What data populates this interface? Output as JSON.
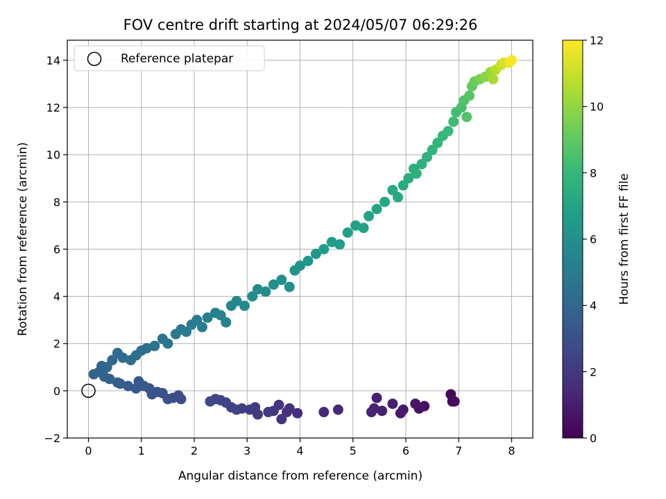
{
  "chart_data": {
    "type": "scatter",
    "title": "FOV centre drift starting at 2024/05/07 06:29:26",
    "xlabel": "Angular distance from reference (arcmin)",
    "ylabel": "Rotation from reference (arcmin)",
    "xlim": [
      -0.4,
      8.4
    ],
    "ylim": [
      -2.0,
      14.85
    ],
    "xticks": [
      0,
      1,
      2,
      3,
      4,
      5,
      6,
      7,
      8
    ],
    "yticks": [
      -2,
      0,
      2,
      4,
      6,
      8,
      10,
      12,
      14
    ],
    "grid": true,
    "legend": {
      "placement": "top-left",
      "entries": [
        "Reference platepar"
      ]
    },
    "reference_point": {
      "x": 0,
      "y": 0
    },
    "colorbar": {
      "label": "Hours from first FF file",
      "min": 0,
      "max": 12,
      "ticks": [
        0,
        2,
        4,
        6,
        8,
        10,
        12
      ],
      "colormap": "viridis"
    },
    "points": [
      [
        6.85,
        -0.15,
        0.2
      ],
      [
        6.88,
        -0.45,
        0.25
      ],
      [
        6.92,
        -0.45,
        0.3
      ],
      [
        6.35,
        -0.65,
        0.5
      ],
      [
        6.25,
        -0.75,
        0.6
      ],
      [
        6.18,
        -0.55,
        0.7
      ],
      [
        5.95,
        -0.8,
        0.8
      ],
      [
        5.9,
        -0.95,
        0.9
      ],
      [
        5.75,
        -0.55,
        1.0
      ],
      [
        5.55,
        -0.85,
        1.05
      ],
      [
        5.45,
        -0.3,
        1.1
      ],
      [
        5.4,
        -0.75,
        1.15
      ],
      [
        5.35,
        -0.9,
        1.2
      ],
      [
        4.72,
        -0.8,
        1.35
      ],
      [
        4.45,
        -0.9,
        1.45
      ],
      [
        3.95,
        -0.95,
        1.6
      ],
      [
        3.8,
        -0.75,
        1.7
      ],
      [
        3.75,
        -0.9,
        1.75
      ],
      [
        3.65,
        -1.2,
        1.8
      ],
      [
        3.6,
        -0.6,
        1.85
      ],
      [
        3.5,
        -0.85,
        1.9
      ],
      [
        3.4,
        -0.9,
        2.0
      ],
      [
        3.2,
        -1.0,
        2.1
      ],
      [
        3.15,
        -0.7,
        2.15
      ],
      [
        3.05,
        -0.8,
        2.2
      ],
      [
        2.9,
        -0.75,
        2.3
      ],
      [
        2.8,
        -0.8,
        2.35
      ],
      [
        2.7,
        -0.7,
        2.4
      ],
      [
        2.6,
        -0.5,
        2.5
      ],
      [
        2.5,
        -0.4,
        2.55
      ],
      [
        2.4,
        -0.35,
        2.6
      ],
      [
        2.3,
        -0.45,
        2.65
      ],
      [
        1.75,
        -0.35,
        2.8
      ],
      [
        1.7,
        -0.2,
        2.85
      ],
      [
        1.6,
        -0.3,
        2.9
      ],
      [
        1.5,
        -0.35,
        3.0
      ],
      [
        1.4,
        -0.1,
        3.05
      ],
      [
        1.3,
        -0.05,
        3.1
      ],
      [
        1.2,
        -0.15,
        3.15
      ],
      [
        1.15,
        0.1,
        3.2
      ],
      [
        1.05,
        0.2,
        3.25
      ],
      [
        0.95,
        0.4,
        3.3
      ],
      [
        0.9,
        0.1,
        3.35
      ],
      [
        0.75,
        0.2,
        3.4
      ],
      [
        0.6,
        0.3,
        3.5
      ],
      [
        0.55,
        0.35,
        3.55
      ],
      [
        0.4,
        0.5,
        3.6
      ],
      [
        0.3,
        0.6,
        3.7
      ],
      [
        0.2,
        0.8,
        3.75
      ],
      [
        0.1,
        0.7,
        3.8
      ],
      [
        0.25,
        1.05,
        3.9
      ],
      [
        0.35,
        1.0,
        3.95
      ],
      [
        0.45,
        1.3,
        4.0
      ],
      [
        0.55,
        1.6,
        4.1
      ],
      [
        0.65,
        1.4,
        4.15
      ],
      [
        0.8,
        1.3,
        4.2
      ],
      [
        0.9,
        1.5,
        4.3
      ],
      [
        1.0,
        1.7,
        4.35
      ],
      [
        1.1,
        1.8,
        4.4
      ],
      [
        1.25,
        1.9,
        4.5
      ],
      [
        1.4,
        2.2,
        4.6
      ],
      [
        1.5,
        2.0,
        4.65
      ],
      [
        1.65,
        2.4,
        4.8
      ],
      [
        1.75,
        2.6,
        4.85
      ],
      [
        1.85,
        2.5,
        4.95
      ],
      [
        1.95,
        2.8,
        5.0
      ],
      [
        2.05,
        3.0,
        5.1
      ],
      [
        2.15,
        2.7,
        5.15
      ],
      [
        2.25,
        3.1,
        5.2
      ],
      [
        2.4,
        3.3,
        5.3
      ],
      [
        2.5,
        3.2,
        5.35
      ],
      [
        2.6,
        2.9,
        5.4
      ],
      [
        2.7,
        3.6,
        5.5
      ],
      [
        2.8,
        3.8,
        5.55
      ],
      [
        2.95,
        3.6,
        5.65
      ],
      [
        3.1,
        4.0,
        5.7
      ],
      [
        3.2,
        4.3,
        5.8
      ],
      [
        3.35,
        4.2,
        5.85
      ],
      [
        3.5,
        4.5,
        5.95
      ],
      [
        3.65,
        4.7,
        6.0
      ],
      [
        3.8,
        4.4,
        6.05
      ],
      [
        3.9,
        5.1,
        6.15
      ],
      [
        4.0,
        5.3,
        6.2
      ],
      [
        4.15,
        5.5,
        6.3
      ],
      [
        4.3,
        5.8,
        6.4
      ],
      [
        4.45,
        6.0,
        6.5
      ],
      [
        4.6,
        6.3,
        6.55
      ],
      [
        4.75,
        6.2,
        6.6
      ],
      [
        4.9,
        6.7,
        6.7
      ],
      [
        5.05,
        7.0,
        6.8
      ],
      [
        5.2,
        6.9,
        6.85
      ],
      [
        5.3,
        7.4,
        6.95
      ],
      [
        5.45,
        7.7,
        7.0
      ],
      [
        5.6,
        8.0,
        7.1
      ],
      [
        5.75,
        8.5,
        7.2
      ],
      [
        5.85,
        8.2,
        7.25
      ],
      [
        5.95,
        8.7,
        7.3
      ],
      [
        6.05,
        9.0,
        7.4
      ],
      [
        6.15,
        9.4,
        7.5
      ],
      [
        6.2,
        9.2,
        7.55
      ],
      [
        6.3,
        9.6,
        7.6
      ],
      [
        6.4,
        9.9,
        7.7
      ],
      [
        6.5,
        10.2,
        7.8
      ],
      [
        6.6,
        10.5,
        7.9
      ],
      [
        6.7,
        10.8,
        8.0
      ],
      [
        6.8,
        11.0,
        8.1
      ],
      [
        6.9,
        11.4,
        8.2
      ],
      [
        6.95,
        11.8,
        8.3
      ],
      [
        7.05,
        12.0,
        8.45
      ],
      [
        7.1,
        12.3,
        8.6
      ],
      [
        7.15,
        11.6,
        8.7
      ],
      [
        7.2,
        12.5,
        8.8
      ],
      [
        7.25,
        12.9,
        9.0
      ],
      [
        7.3,
        13.1,
        9.2
      ],
      [
        7.4,
        13.2,
        9.5
      ],
      [
        7.5,
        13.3,
        9.8
      ],
      [
        7.6,
        13.5,
        10.1
      ],
      [
        7.65,
        13.2,
        10.4
      ],
      [
        7.7,
        13.6,
        10.7
      ],
      [
        7.8,
        13.8,
        11.0
      ],
      [
        7.85,
        13.9,
        11.3
      ],
      [
        7.95,
        13.9,
        11.6
      ],
      [
        8.0,
        14.0,
        11.9
      ]
    ]
  }
}
